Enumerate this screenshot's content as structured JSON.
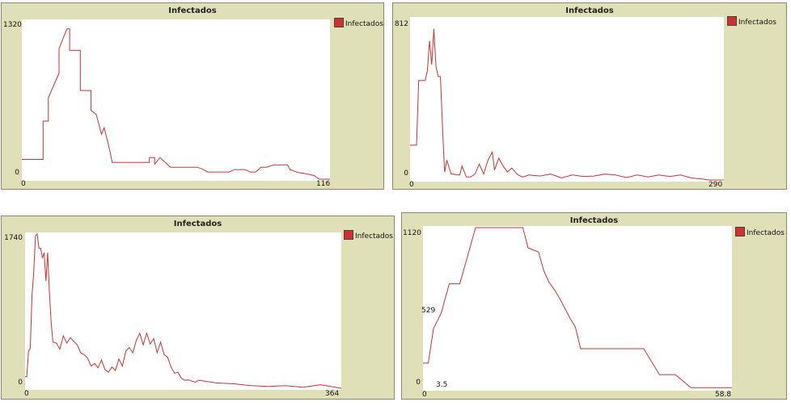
{
  "chart_data": [
    {
      "type": "line",
      "title": "Infectados",
      "legend": [
        "Infectados"
      ],
      "legend_position": "right",
      "color": "#d03030",
      "xlim": [
        0,
        116
      ],
      "ylim": [
        0,
        1320
      ],
      "ticks": {
        "x_min": "0",
        "x_max": "116",
        "y_min": "0",
        "y_max": "1320"
      },
      "x": [
        0,
        4,
        8,
        8,
        10,
        10,
        14,
        14,
        17,
        18,
        18,
        20,
        22,
        22,
        26,
        26,
        28,
        30,
        31,
        32,
        33,
        34,
        35,
        36,
        42,
        48,
        48,
        50,
        50,
        52,
        56,
        58,
        64,
        66,
        68,
        70,
        72,
        78,
        80,
        82,
        84,
        86,
        88,
        90,
        92,
        95,
        100,
        101,
        104,
        106,
        110,
        112,
        116
      ],
      "y": [
        165,
        165,
        165,
        485,
        485,
        680,
        885,
        1090,
        1255,
        1255,
        1075,
        1075,
        1075,
        740,
        740,
        575,
        540,
        375,
        430,
        340,
        250,
        140,
        140,
        140,
        140,
        140,
        180,
        180,
        125,
        180,
        100,
        100,
        100,
        100,
        85,
        60,
        60,
        60,
        80,
        80,
        80,
        60,
        60,
        100,
        100,
        120,
        120,
        80,
        55,
        50,
        30,
        0,
        0
      ]
    },
    {
      "type": "line",
      "title": "Infectados",
      "legend": [
        "Infectados"
      ],
      "legend_position": "right",
      "color": "#d03030",
      "xlim": [
        0,
        290
      ],
      "ylim": [
        0,
        812
      ],
      "ticks": {
        "x_min": "0",
        "x_max": "290",
        "y_min": "0",
        "y_max": "812"
      },
      "x": [
        0,
        6,
        8,
        14,
        16,
        18,
        20,
        22,
        24,
        26,
        28,
        31,
        32,
        34,
        38,
        40,
        44,
        46,
        48,
        52,
        56,
        60,
        64,
        68,
        72,
        76,
        78,
        82,
        86,
        90,
        94,
        98,
        100,
        104,
        110,
        120,
        130,
        140,
        150,
        160,
        170,
        180,
        190,
        200,
        210,
        220,
        230,
        240,
        250,
        260,
        270,
        276,
        290
      ],
      "y": [
        175,
        175,
        500,
        500,
        550,
        700,
        580,
        760,
        570,
        520,
        520,
        140,
        40,
        100,
        30,
        30,
        25,
        25,
        70,
        15,
        15,
        30,
        80,
        30,
        100,
        140,
        50,
        110,
        70,
        40,
        60,
        35,
        25,
        15,
        25,
        20,
        30,
        10,
        25,
        18,
        20,
        30,
        25,
        12,
        25,
        15,
        25,
        18,
        25,
        10,
        5,
        0,
        0
      ]
    },
    {
      "type": "line",
      "title": "Infectados",
      "legend": [
        "Infectados"
      ],
      "legend_position": "right",
      "color": "#d03030",
      "xlim": [
        0,
        364
      ],
      "ylim": [
        0,
        1740
      ],
      "ticks": {
        "x_min": "0",
        "x_max": "364",
        "y_min": "0",
        "y_max": "1740"
      },
      "x": [
        0,
        2,
        4,
        6,
        8,
        10,
        12,
        14,
        16,
        18,
        20,
        22,
        24,
        26,
        28,
        30,
        32,
        36,
        40,
        44,
        48,
        52,
        56,
        60,
        64,
        68,
        72,
        76,
        80,
        84,
        88,
        92,
        96,
        100,
        104,
        108,
        112,
        116,
        120,
        124,
        128,
        132,
        136,
        140,
        144,
        148,
        152,
        156,
        160,
        164,
        168,
        172,
        176,
        180,
        184,
        188,
        192,
        196,
        200,
        220,
        240,
        260,
        280,
        300,
        320,
        340,
        364
      ],
      "y": [
        130,
        130,
        420,
        450,
        1050,
        1310,
        1720,
        1740,
        1580,
        1580,
        1470,
        1530,
        1210,
        1530,
        1080,
        750,
        520,
        510,
        440,
        590,
        510,
        570,
        530,
        490,
        400,
        380,
        340,
        250,
        280,
        230,
        320,
        210,
        180,
        240,
        200,
        330,
        250,
        420,
        460,
        400,
        540,
        620,
        490,
        620,
        500,
        560,
        400,
        520,
        380,
        350,
        240,
        170,
        180,
        110,
        90,
        95,
        80,
        70,
        90,
        60,
        50,
        30,
        20,
        30,
        10,
        40,
        0
      ]
    },
    {
      "type": "line",
      "title": "Infectados",
      "legend": [
        "Infectados"
      ],
      "legend_position": "right",
      "color": "#d03030",
      "xlim": [
        0,
        58.8
      ],
      "ylim": [
        0,
        1120
      ],
      "ticks": {
        "x_min": "0",
        "x_max": "58.8",
        "y_min": "0",
        "y_max": "1120",
        "y_mid": "529",
        "x_mid": "3.5"
      },
      "x": [
        0,
        1,
        2,
        3.5,
        4,
        5,
        7,
        10,
        12,
        14,
        18,
        19,
        20,
        22,
        23,
        24,
        25,
        26,
        27,
        28,
        29,
        30,
        34,
        40,
        42,
        45,
        48,
        51,
        55,
        58.8
      ],
      "y": [
        180,
        180,
        420,
        529,
        600,
        730,
        730,
        1120,
        1120,
        1120,
        1120,
        1120,
        980,
        950,
        820,
        740,
        690,
        630,
        560,
        490,
        430,
        280,
        280,
        280,
        280,
        100,
        100,
        10,
        10,
        10
      ]
    }
  ]
}
